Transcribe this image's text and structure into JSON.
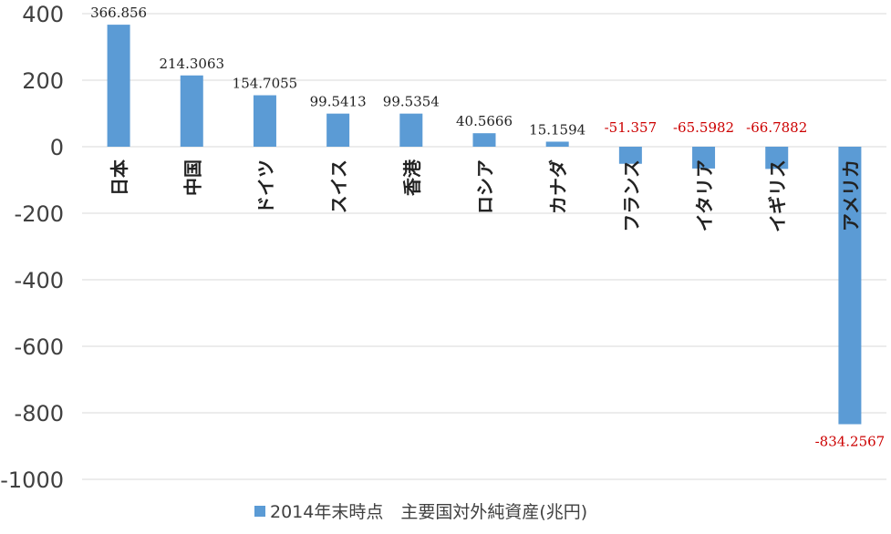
{
  "chart_data": {
    "type": "bar",
    "title": "",
    "xlabel": "",
    "ylabel": "",
    "categories": [
      "日本",
      "中国",
      "ドイツ",
      "スイス",
      "香港",
      "ロシア",
      "カナダ",
      "フランス",
      "イタリア",
      "イギリス",
      "アメリカ"
    ],
    "series": [
      {
        "name": "2014年末時点　主要国対外純資産(兆円)",
        "values": [
          366.856,
          214.3063,
          154.7055,
          99.5413,
          99.5354,
          40.5666,
          15.1594,
          -51.357,
          -65.5982,
          -66.7882,
          -834.2567
        ],
        "data_labels": [
          "366.856",
          "214.3063",
          "154.7055",
          "99.5413",
          "99.5354",
          "40.5666",
          "15.1594",
          "-51.357",
          "-65.5982",
          "-66.7882",
          "-834.2567"
        ]
      }
    ],
    "ylim": [
      -1000,
      400
    ],
    "yticks": [
      400,
      200,
      0,
      -200,
      -400,
      -600,
      -800,
      -1000
    ],
    "ytick_labels": [
      "400",
      "200",
      "0",
      "-200",
      "-400",
      "-600",
      "-800",
      "-1000"
    ],
    "grid": true,
    "legend_position": "bottom",
    "colors": {
      "bar": "#5b9bd5",
      "positive_label": "#222222",
      "negative_label": "#cc0000",
      "grid": "#d9d9d9",
      "axis_text": "#404040",
      "category_text": "#222222"
    }
  },
  "legend": {
    "label": "2014年末時点　主要国対外純資産(兆円)"
  }
}
